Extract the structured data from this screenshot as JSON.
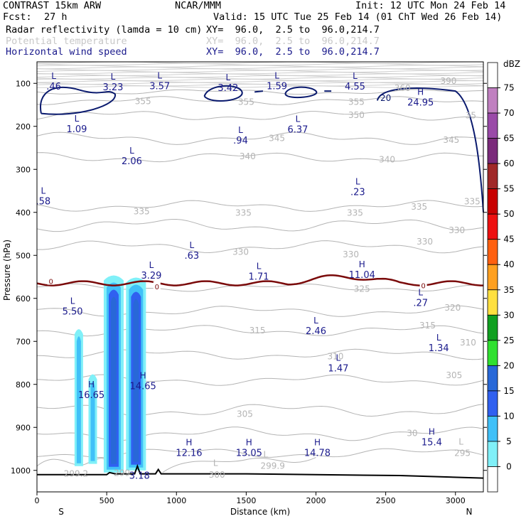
{
  "header": {
    "model": "CONTRAST 15km ARW",
    "org": "NCAR/MMM",
    "init": "Init: 12 UTC Mon 24 Feb 14",
    "fcst_label": "Fcst:",
    "fcst_value": "27 h",
    "valid": "Valid: 15 UTC Tue 25 Feb 14 (01 ChT Wed 26 Feb 14)",
    "fields": [
      {
        "name": "Radar reflectivity (lamda = 10 cm)",
        "xy": "XY=  96.0,  2.5 to  96.0,214.7"
      },
      {
        "name": "Potential temperature",
        "xy": "XY=  96.0,  2.5 to  96.0,214.7"
      },
      {
        "name": "Horizontal wind speed",
        "xy": "XY=  96.0,  2.5 to  96.0,214.7"
      }
    ]
  },
  "colors": {
    "theta": "#b4b4b4",
    "wind": "#0a1a6e",
    "freezing": "#7a0a0a",
    "text_blue": "#1a1a8c"
  },
  "chart_data": {
    "type": "cross-section",
    "xlabel": "Distance (km)",
    "ylabel": "Pressure (hPa)",
    "xlim": [
      0,
      3200
    ],
    "ylim": [
      1050,
      50
    ],
    "x_ticks": [
      0,
      500,
      1000,
      1500,
      2000,
      2500,
      3000
    ],
    "y_ticks": [
      100,
      200,
      300,
      400,
      500,
      600,
      700,
      800,
      900,
      1000
    ],
    "end_labels": {
      "left": "S",
      "right": "N"
    },
    "theta_labels": [
      {
        "text": "390",
        "x": 2950,
        "p": 95
      },
      {
        "text": "360",
        "x": 2620,
        "p": 111
      },
      {
        "text": "355",
        "x": 760,
        "p": 142
      },
      {
        "text": "355",
        "x": 1500,
        "p": 143
      },
      {
        "text": "355",
        "x": 2290,
        "p": 143
      },
      {
        "text": "35",
        "x": 3110,
        "p": 175
      },
      {
        "text": "350",
        "x": 2290,
        "p": 174
      },
      {
        "text": "345",
        "x": 1720,
        "p": 228
      },
      {
        "text": "345",
        "x": 2970,
        "p": 232
      },
      {
        "text": "340",
        "x": 1510,
        "p": 270
      },
      {
        "text": "340",
        "x": 2510,
        "p": 277
      },
      {
        "text": "335",
        "x": 3120,
        "p": 375
      },
      {
        "text": "335",
        "x": 2740,
        "p": 387
      },
      {
        "text": "335",
        "x": 750,
        "p": 398
      },
      {
        "text": "335",
        "x": 1480,
        "p": 401
      },
      {
        "text": "335",
        "x": 2280,
        "p": 401
      },
      {
        "text": "330",
        "x": 3010,
        "p": 442
      },
      {
        "text": "330",
        "x": 1460,
        "p": 492
      },
      {
        "text": "330",
        "x": 2250,
        "p": 498
      },
      {
        "text": "330",
        "x": 2780,
        "p": 468
      },
      {
        "text": "325",
        "x": 2330,
        "p": 578
      },
      {
        "text": "320",
        "x": 2980,
        "p": 622
      },
      {
        "text": "315",
        "x": 1580,
        "p": 675
      },
      {
        "text": "315",
        "x": 2800,
        "p": 663
      },
      {
        "text": "310",
        "x": 3090,
        "p": 703
      },
      {
        "text": "310",
        "x": 2140,
        "p": 735
      },
      {
        "text": "305",
        "x": 2990,
        "p": 779
      },
      {
        "text": "305",
        "x": 1490,
        "p": 869
      },
      {
        "text": "30",
        "x": 2690,
        "p": 914
      },
      {
        "text": "295",
        "x": 3050,
        "p": 960
      },
      {
        "text": "300",
        "x": 1290,
        "p": 1010
      },
      {
        "text": "299.9",
        "x": 1690,
        "p": 990
      },
      {
        "text": "299.2",
        "x": 280,
        "p": 1008
      },
      {
        "text": "299",
        "x": 610,
        "p": 1006
      }
    ],
    "freezing_level_label": "0",
    "wind_extrema": [
      {
        "kind": "L",
        "value": ".46",
        "x": 120,
        "p": 90
      },
      {
        "kind": "L",
        "value": "3.23",
        "x": 545,
        "p": 91
      },
      {
        "kind": "L",
        "value": "3.57",
        "x": 880,
        "p": 89
      },
      {
        "kind": "L",
        "value": "3.42",
        "x": 1370,
        "p": 93
      },
      {
        "kind": "L",
        "value": "1.59",
        "x": 1720,
        "p": 89
      },
      {
        "kind": "L",
        "value": "4.55",
        "x": 2280,
        "p": 90
      },
      {
        "kind": "H",
        "value": "24.95",
        "x": 2750,
        "p": 127
      },
      {
        "kind": "L",
        "value": "1.09",
        "x": 285,
        "p": 189
      },
      {
        "kind": "L",
        "value": ".94",
        "x": 1460,
        "p": 215
      },
      {
        "kind": "L",
        "value": "6.37",
        "x": 1870,
        "p": 190
      },
      {
        "kind": "L",
        "value": "2.06",
        "x": 680,
        "p": 263
      },
      {
        "kind": "L",
        "value": ".23",
        "x": 2300,
        "p": 335
      },
      {
        "kind": "L",
        "value": ".58",
        "x": 45,
        "p": 357
      },
      {
        "kind": "L",
        "value": ".63",
        "x": 1110,
        "p": 483
      },
      {
        "kind": "L",
        "value": "3.29",
        "x": 820,
        "p": 529
      },
      {
        "kind": "L",
        "value": "1.71",
        "x": 1590,
        "p": 532
      },
      {
        "kind": "H",
        "value": "11.04",
        "x": 2330,
        "p": 528
      },
      {
        "kind": "L",
        "value": ".27",
        "x": 2750,
        "p": 593
      },
      {
        "kind": "L",
        "value": "5.50",
        "x": 255,
        "p": 613
      },
      {
        "kind": "L",
        "value": "2.46",
        "x": 2000,
        "p": 658
      },
      {
        "kind": "L",
        "value": "1.34",
        "x": 2880,
        "p": 698
      },
      {
        "kind": "L",
        "value": "1.47",
        "x": 2160,
        "p": 745
      },
      {
        "kind": "H",
        "value": "14.65",
        "x": 760,
        "p": 786
      },
      {
        "kind": "H",
        "value": "16.65",
        "x": 390,
        "p": 807
      },
      {
        "kind": "H",
        "value": "12.16",
        "x": 1090,
        "p": 942
      },
      {
        "kind": "H",
        "value": "13.05",
        "x": 1520,
        "p": 942
      },
      {
        "kind": "H",
        "value": "14.78",
        "x": 2010,
        "p": 942
      },
      {
        "kind": "H",
        "value": "15.4",
        "x": 2830,
        "p": 917
      },
      {
        "kind": "",
        "value": "3.18",
        "x": 735,
        "p": 995
      },
      {
        "kind": "L",
        "value": "",
        "x": 1280,
        "p": 990
      },
      {
        "kind": "L",
        "value": "",
        "x": 1640,
        "p": 970
      },
      {
        "kind": "L",
        "value": "",
        "x": 3040,
        "p": 940
      }
    ],
    "wind_contour_labels": [
      {
        "text": "20",
        "x": 2500,
        "p": 134
      }
    ],
    "reflectivity_cells": [
      {
        "x_center": 550,
        "p_top": 545,
        "p_bottom": 1005,
        "max_dbz": 20
      },
      {
        "x_center": 710,
        "p_top": 550,
        "p_bottom": 1000,
        "max_dbz": 20
      },
      {
        "x_center": 400,
        "p_top": 775,
        "p_bottom": 985,
        "max_dbz": 10
      },
      {
        "x_center": 300,
        "p_top": 670,
        "p_bottom": 990,
        "max_dbz": 10
      }
    ],
    "colorbar": {
      "unit": "dBZ",
      "levels": [
        {
          "value": "75",
          "color": "#c080c0"
        },
        {
          "value": "70",
          "color": "#9a4aa8"
        },
        {
          "value": "65",
          "color": "#7a2a7a"
        },
        {
          "value": "60",
          "color": "#a02828"
        },
        {
          "value": "55",
          "color": "#c80000"
        },
        {
          "value": "50",
          "color": "#ee1010"
        },
        {
          "value": "45",
          "color": "#ff6010"
        },
        {
          "value": "40",
          "color": "#ffa020"
        },
        {
          "value": "35",
          "color": "#ffe040"
        },
        {
          "value": "30",
          "color": "#10a020"
        },
        {
          "value": "25",
          "color": "#30e030"
        },
        {
          "value": "20",
          "color": "#2868d8"
        },
        {
          "value": "15",
          "color": "#3060f0"
        },
        {
          "value": "10",
          "color": "#40c0f8"
        },
        {
          "value": "5",
          "color": "#80f0f8"
        },
        {
          "value": "0",
          "color": "#ffffff"
        }
      ]
    }
  }
}
